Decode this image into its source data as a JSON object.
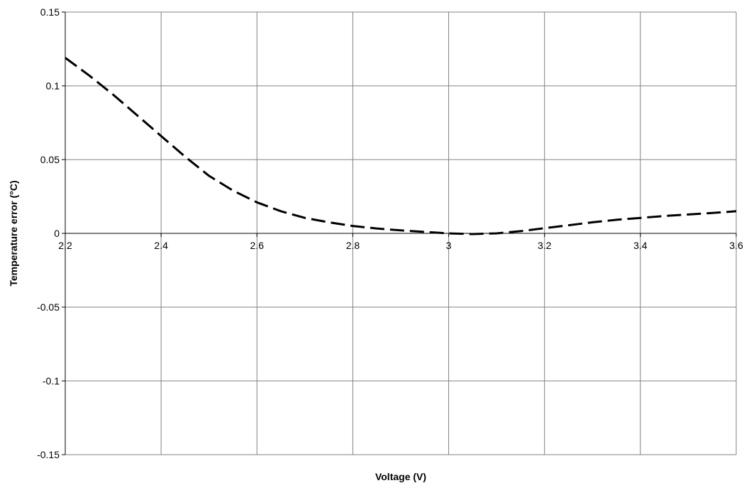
{
  "chart_data": {
    "type": "line",
    "title": "",
    "xlabel": "Voltage (V)",
    "ylabel": "Temperature error (°C)",
    "xlim": [
      2.2,
      3.6
    ],
    "ylim": [
      -0.15,
      0.15
    ],
    "x_ticks": [
      2.2,
      2.4,
      2.6,
      2.8,
      3.0,
      3.2,
      3.4,
      3.6
    ],
    "x_tick_labels": [
      "2.2",
      "2.4",
      "2.6",
      "2.8",
      "3",
      "3.2",
      "3.4",
      "3.6"
    ],
    "y_ticks": [
      0.15,
      0.1,
      0.05,
      0,
      -0.05,
      -0.1,
      -0.15
    ],
    "y_tick_labels": [
      "0.15",
      "0.1",
      "0.05",
      "0",
      "-0.05",
      "-0.1",
      "-0.15"
    ],
    "grid": true,
    "legend": "none",
    "series": [
      {
        "color": "#000000",
        "line_style": "dashed",
        "x": [
          2.2,
          2.25,
          2.3,
          2.35,
          2.4,
          2.45,
          2.5,
          2.55,
          2.6,
          2.65,
          2.7,
          2.75,
          2.8,
          2.85,
          2.9,
          2.95,
          3.0,
          3.05,
          3.1,
          3.15,
          3.2,
          3.25,
          3.3,
          3.35,
          3.4,
          3.45,
          3.5,
          3.55,
          3.6
        ],
        "y": [
          0.119,
          0.107,
          0.094,
          0.08,
          0.066,
          0.052,
          0.039,
          0.029,
          0.021,
          0.015,
          0.0105,
          0.0075,
          0.005,
          0.0033,
          0.002,
          0.001,
          0.0,
          -0.0005,
          0.0,
          0.0015,
          0.0035,
          0.0055,
          0.0075,
          0.0092,
          0.0105,
          0.0118,
          0.0128,
          0.0138,
          0.015
        ]
      }
    ]
  }
}
